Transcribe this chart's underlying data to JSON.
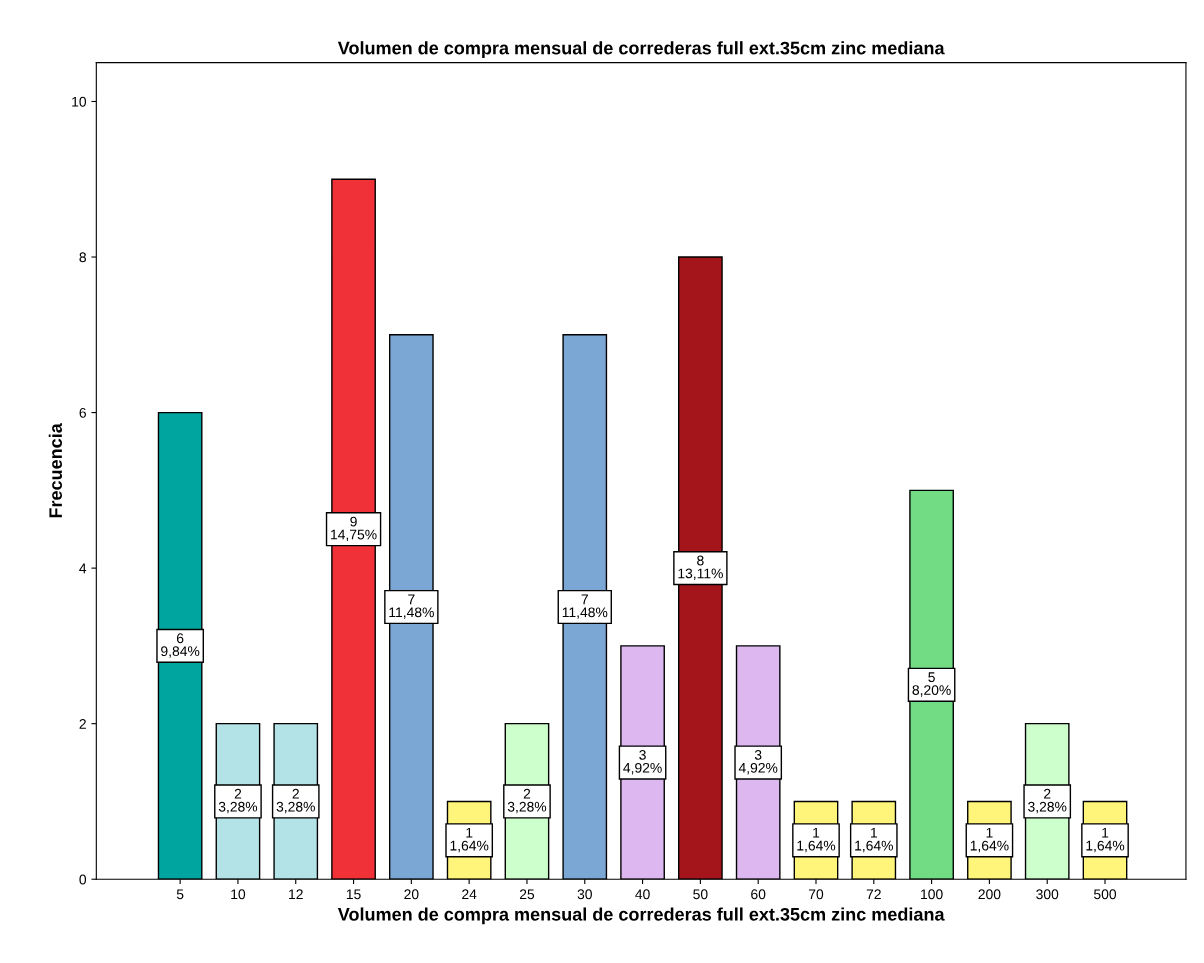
{
  "chart_data": {
    "type": "bar",
    "title": "Volumen de compra mensual de correderas full ext.35cm zinc mediana",
    "xlabel": "Volumen de compra mensual de correderas full ext.35cm zinc mediana",
    "ylabel": "Frecuencia",
    "categories": [
      "5",
      "10",
      "12",
      "15",
      "20",
      "24",
      "25",
      "30",
      "40",
      "50",
      "60",
      "70",
      "72",
      "100",
      "200",
      "300",
      "500"
    ],
    "values": [
      6,
      2,
      2,
      9,
      7,
      1,
      2,
      7,
      3,
      8,
      3,
      1,
      1,
      5,
      1,
      2,
      1
    ],
    "colors": [
      "#00a5a0",
      "#b3e3e6",
      "#b3e3e6",
      "#f03238",
      "#7ba7d5",
      "#fff57a",
      "#ccffcc",
      "#7ba7d5",
      "#ddb8f0",
      "#a3141b",
      "#ddb8f0",
      "#fff57a",
      "#fff57a",
      "#72dc84",
      "#fff57a",
      "#ccffcc",
      "#fff57a"
    ],
    "value_labels": [
      "6\n9,84%",
      "2\n3,28%",
      "2\n3,28%",
      "9\n14,75%",
      "7\n11,48%",
      "1\n1,64%",
      "2\n3,28%",
      "7\n11,48%",
      "3\n4,92%",
      "8\n13,11%",
      "3\n4,92%",
      "1\n1,64%",
      "1\n1,64%",
      "5\n8,20%",
      "1\n1,64%",
      "2\n3,28%",
      "1\n1,64%"
    ],
    "ylim": [
      0,
      10.5
    ],
    "yticks": [
      0,
      2,
      4,
      6,
      8,
      10
    ],
    "grid": false,
    "legend": false
  }
}
